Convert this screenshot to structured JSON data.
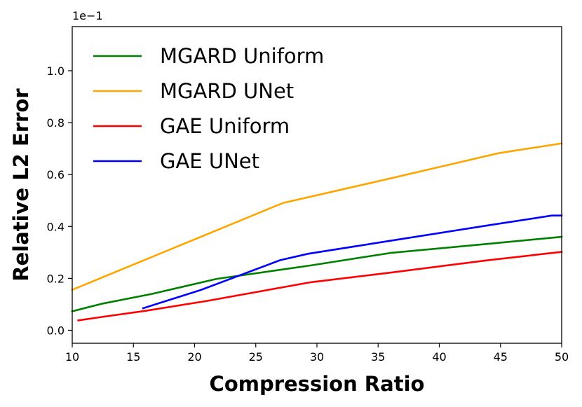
{
  "chart_data": {
    "type": "line",
    "title": "",
    "xlabel": "Compression Ratio",
    "ylabel": "Relative L2 Error",
    "y_scale_label": "1e−1",
    "xlim": [
      10,
      50
    ],
    "ylim": [
      -0.05,
      1.17
    ],
    "xticks": [
      10,
      15,
      20,
      25,
      30,
      35,
      40,
      45,
      50
    ],
    "yticks": [
      0.0,
      0.2,
      0.4,
      0.6,
      0.8,
      1.0
    ],
    "xtick_labels": [
      "10",
      "15",
      "20",
      "25",
      "30",
      "35",
      "40",
      "45",
      "50"
    ],
    "ytick_labels": [
      "0.0",
      "0.2",
      "0.4",
      "0.6",
      "0.8",
      "1.0"
    ],
    "grid": false,
    "legend_position": "top-left",
    "series": [
      {
        "name": "MGARD Uniform",
        "color": "#008000",
        "x": [
          10,
          12.4,
          16.5,
          21.8,
          29.5,
          36,
          44,
          50
        ],
        "y": [
          0.073,
          0.102,
          0.14,
          0.198,
          0.25,
          0.298,
          0.333,
          0.36
        ]
      },
      {
        "name": "MGARD UNet",
        "color": "#FFA500",
        "x": [
          10,
          27.2,
          29.5,
          36,
          44.8,
          50
        ],
        "y": [
          0.156,
          0.49,
          0.515,
          0.585,
          0.682,
          0.72
        ]
      },
      {
        "name": "GAE Uniform",
        "color": "#FF0000",
        "x": [
          10.5,
          12.2,
          16,
          21,
          29.5,
          36,
          44,
          50
        ],
        "y": [
          0.038,
          0.05,
          0.075,
          0.113,
          0.185,
          0.222,
          0.27,
          0.302
        ]
      },
      {
        "name": "GAE UNet",
        "color": "#0000FF",
        "x": [
          15.8,
          20.5,
          27,
          29.3,
          36,
          44.5,
          49.2,
          50
        ],
        "y": [
          0.085,
          0.155,
          0.27,
          0.295,
          0.345,
          0.408,
          0.442,
          0.442
        ]
      }
    ]
  }
}
